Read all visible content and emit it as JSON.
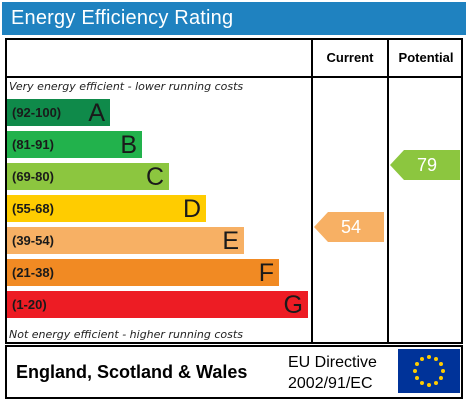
{
  "title": "Energy Efficiency Rating",
  "columns": {
    "current": "Current",
    "potential": "Potential"
  },
  "notes": {
    "top": "Very energy efficient - lower running costs",
    "bottom": "Not energy efficient - higher running costs"
  },
  "bands": [
    {
      "range": "(92-100)",
      "letter": "A",
      "color": "#0f8a4a"
    },
    {
      "range": "(81-91)",
      "letter": "B",
      "color": "#22b24c"
    },
    {
      "range": "(69-80)",
      "letter": "C",
      "color": "#8cc63f"
    },
    {
      "range": "(55-68)",
      "letter": "D",
      "color": "#ffcc00"
    },
    {
      "range": "(39-54)",
      "letter": "E",
      "color": "#f7b064"
    },
    {
      "range": "(21-38)",
      "letter": "F",
      "color": "#f18a23"
    },
    {
      "range": "(1-20)",
      "letter": "G",
      "color": "#ed1c24"
    }
  ],
  "current": {
    "value": "54",
    "color": "#f7b064"
  },
  "potential": {
    "value": "79",
    "color": "#8cc63f"
  },
  "footer": {
    "country": "England, Scotland & Wales",
    "directive_line1": "EU Directive",
    "directive_line2": "2002/91/EC"
  },
  "icons": {
    "flag": "eu-flag-icon"
  },
  "colors": {
    "title_bar": "#1f82c0",
    "flag_blue": "#003399",
    "flag_star": "#ffcc00"
  }
}
